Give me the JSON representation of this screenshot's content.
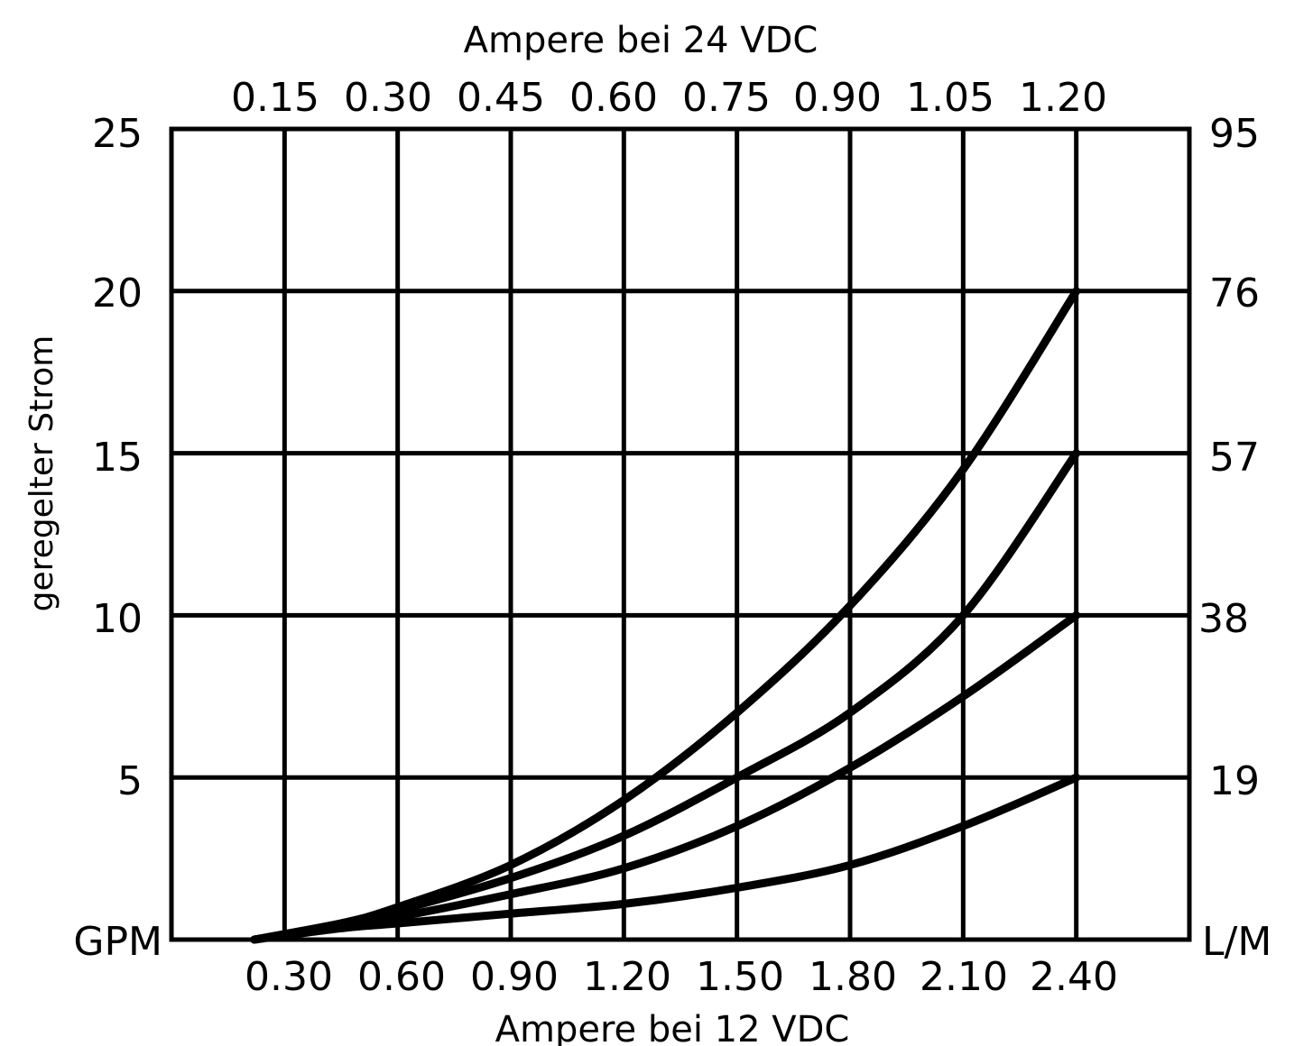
{
  "chart_data": {
    "type": "line",
    "title": "",
    "xlabel": "Ampere bei 12 VDC",
    "x2label": "Ampere bei 24 VDC",
    "ylabel": "geregelter Strom",
    "y_unit_left": "GPM",
    "y_unit_right": "L/M",
    "xlim": [
      0,
      2.7
    ],
    "ylim": [
      0,
      25
    ],
    "grid": true,
    "x_ticks": [
      "0.30",
      "0.60",
      "0.90",
      "1.20",
      "1.50",
      "1.80",
      "2.10",
      "2.40"
    ],
    "x2_ticks": [
      "0.15",
      "0.30",
      "0.45",
      "0.60",
      "0.75",
      "0.90",
      "1.05",
      "1.20"
    ],
    "y_ticks": [
      "5",
      "10",
      "15",
      "20",
      "25"
    ],
    "y_tick_values": [
      5,
      10,
      15,
      20,
      25
    ],
    "y2_ticks": [
      "19",
      "38",
      "57",
      "76",
      "95"
    ],
    "series": [
      {
        "x": [
          0.22,
          0.45,
          0.6,
          0.9,
          1.2,
          1.5,
          1.8,
          2.1,
          2.4
        ],
        "y": [
          0,
          0.5,
          1.0,
          2.3,
          4.3,
          7.0,
          10.3,
          14.5,
          20.0
        ]
      },
      {
        "x": [
          0.22,
          0.45,
          0.6,
          0.9,
          1.2,
          1.5,
          1.8,
          2.1,
          2.4
        ],
        "y": [
          0,
          0.5,
          0.9,
          1.9,
          3.2,
          5.0,
          7.0,
          10.0,
          15.0
        ]
      },
      {
        "x": [
          0.22,
          0.45,
          0.6,
          0.9,
          1.2,
          1.5,
          1.8,
          2.1,
          2.4
        ],
        "y": [
          0,
          0.45,
          0.7,
          1.4,
          2.2,
          3.5,
          5.3,
          7.5,
          10.0
        ]
      },
      {
        "x": [
          0.22,
          0.45,
          0.6,
          0.9,
          1.2,
          1.5,
          1.8,
          2.1,
          2.4
        ],
        "y": [
          0,
          0.35,
          0.5,
          0.8,
          1.1,
          1.6,
          2.3,
          3.5,
          5.0
        ]
      }
    ]
  }
}
